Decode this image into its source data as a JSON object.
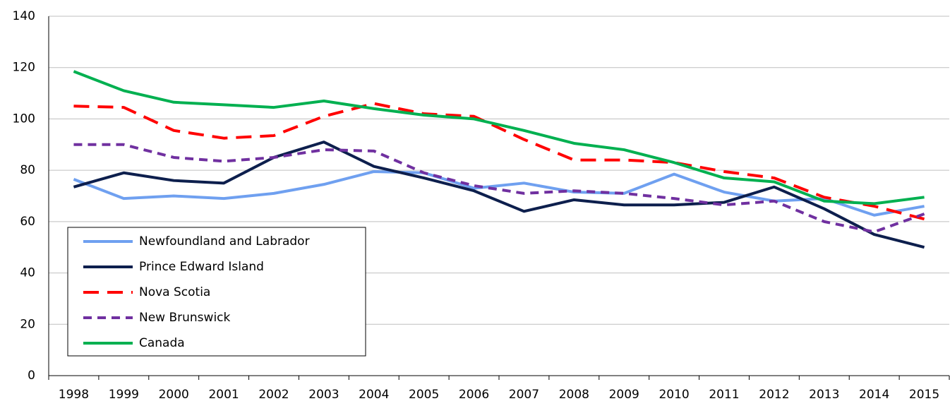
{
  "chart_data": {
    "type": "line",
    "categories": [
      "1998",
      "1999",
      "2000",
      "2001",
      "2002",
      "2003",
      "2004",
      "2005",
      "2006",
      "2007",
      "2008",
      "2009",
      "2010",
      "2011",
      "2012",
      "2013",
      "2014",
      "2015"
    ],
    "series": [
      {
        "name": "Newfoundland and Labrador",
        "color": "#6fa0f0",
        "dash": "solid",
        "values": [
          76.5,
          69,
          70,
          69,
          71,
          74.5,
          79.5,
          79,
          73,
          75,
          71.5,
          71,
          78.5,
          71.5,
          68,
          69,
          62.5,
          66
        ]
      },
      {
        "name": "Prince Edward Island",
        "color": "#0d1f4d",
        "dash": "solid",
        "values": [
          73.5,
          79,
          76,
          75,
          85,
          91,
          81.5,
          77,
          72,
          64,
          68.5,
          66.5,
          66.5,
          67.5,
          73.5,
          65,
          55,
          50
        ]
      },
      {
        "name": "Nova Scotia",
        "color": "#ff0000",
        "dash": "long",
        "values": [
          105,
          104.5,
          95.5,
          92.5,
          93.5,
          101,
          106,
          102,
          101,
          92,
          84,
          84,
          83,
          79.5,
          77,
          69.5,
          66,
          61
        ]
      },
      {
        "name": "New Brunswick",
        "color": "#7030a0",
        "dash": "short",
        "values": [
          90,
          90,
          85,
          83.5,
          85,
          88,
          87.5,
          79,
          74,
          71,
          72,
          71,
          69,
          66.5,
          68,
          60,
          56,
          63
        ]
      },
      {
        "name": "Canada",
        "color": "#00b050",
        "dash": "solid",
        "values": [
          118.5,
          111,
          106.5,
          105.5,
          104.5,
          107,
          104,
          101.5,
          100,
          95.5,
          90.5,
          88,
          83,
          77,
          75.5,
          68,
          67,
          69.5
        ]
      }
    ],
    "ylim": [
      0,
      140
    ],
    "yticks": [
      0,
      20,
      40,
      60,
      80,
      100,
      120,
      140
    ],
    "grid": true,
    "legend": "lower-left"
  }
}
